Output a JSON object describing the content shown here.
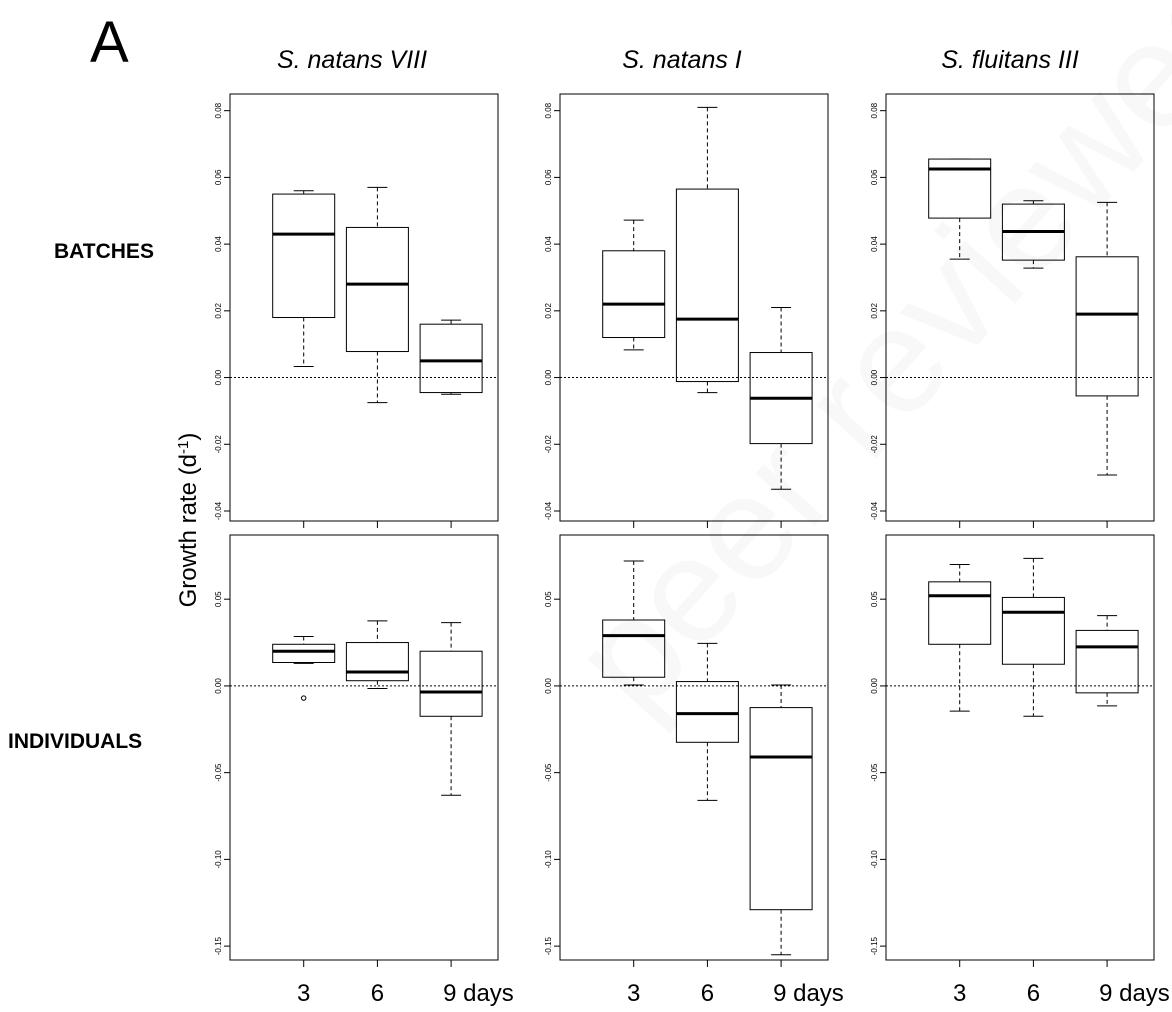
{
  "figure": {
    "panel_letter": "A",
    "ylabel": "Growth rate (d",
    "ylabel_sup": "-1",
    "ylabel_close": ")",
    "watermark": "peer reviewed",
    "columns": [
      "S. natans VIII",
      "S. natans I",
      "S. fluitans III"
    ],
    "rows": [
      "BATCHES",
      "INDIVIDUALS"
    ]
  },
  "chart_data": [
    {
      "type": "boxplot",
      "column": "S. natans VIII",
      "row": "BATCHES",
      "categories": [
        "3",
        "6",
        "9 days"
      ],
      "ylim": [
        -0.043,
        0.085
      ],
      "yticks": [
        "-0.04",
        "-0.02",
        "0.00",
        "0.02",
        "0.04",
        "0.06",
        "0.08"
      ],
      "reference_line": 0,
      "boxes": [
        {
          "min": 0.0033,
          "q1": 0.018,
          "median": 0.043,
          "q3": 0.055,
          "max": 0.056
        },
        {
          "min": -0.0075,
          "q1": 0.0078,
          "median": 0.028,
          "q3": 0.045,
          "max": 0.057
        },
        {
          "min": -0.005,
          "q1": -0.0045,
          "median": 0.005,
          "q3": 0.016,
          "max": 0.0172
        }
      ],
      "outliers": []
    },
    {
      "type": "boxplot",
      "column": "S. natans I",
      "row": "BATCHES",
      "categories": [
        "3",
        "6",
        "9 days"
      ],
      "ylim": [
        -0.043,
        0.085
      ],
      "yticks": [
        "-0.04",
        "-0.02",
        "0.00",
        "0.02",
        "0.04",
        "0.06",
        "0.08"
      ],
      "reference_line": 0,
      "boxes": [
        {
          "min": 0.0083,
          "q1": 0.012,
          "median": 0.022,
          "q3": 0.038,
          "max": 0.0472
        },
        {
          "min": -0.0045,
          "q1": -0.0012,
          "median": 0.0175,
          "q3": 0.0565,
          "max": 0.081
        },
        {
          "min": -0.0335,
          "q1": -0.0198,
          "median": -0.0062,
          "q3": 0.0075,
          "max": 0.021
        }
      ],
      "outliers": []
    },
    {
      "type": "boxplot",
      "column": "S. fluitans III",
      "row": "BATCHES",
      "categories": [
        "3",
        "6",
        "9 days"
      ],
      "ylim": [
        -0.043,
        0.085
      ],
      "yticks": [
        "-0.04",
        "-0.02",
        "0.00",
        "0.02",
        "0.04",
        "0.06",
        "0.08"
      ],
      "reference_line": 0,
      "boxes": [
        {
          "min": 0.0355,
          "q1": 0.0478,
          "median": 0.0625,
          "q3": 0.0655,
          "max": 0.0655
        },
        {
          "min": 0.0328,
          "q1": 0.0352,
          "median": 0.0438,
          "q3": 0.052,
          "max": 0.053
        },
        {
          "min": -0.0292,
          "q1": -0.0055,
          "median": 0.019,
          "q3": 0.0362,
          "max": 0.0525
        }
      ],
      "outliers": []
    },
    {
      "type": "boxplot",
      "column": "S. natans VIII",
      "row": "INDIVIDUALS",
      "categories": [
        "3",
        "6",
        "9 days"
      ],
      "ylim": [
        -0.158,
        0.087
      ],
      "yticks": [
        "-0.15",
        "-0.10",
        "-0.05",
        "0.00",
        "0.05"
      ],
      "reference_line": 0,
      "boxes": [
        {
          "min": 0.013,
          "q1": 0.0135,
          "median": 0.02,
          "q3": 0.024,
          "max": 0.0285
        },
        {
          "min": -0.0015,
          "q1": 0.003,
          "median": 0.008,
          "q3": 0.025,
          "max": 0.0375
        },
        {
          "min": -0.063,
          "q1": -0.0175,
          "median": -0.0035,
          "q3": 0.02,
          "max": 0.0365
        }
      ],
      "outliers": [
        {
          "category": "3",
          "value": -0.007
        }
      ]
    },
    {
      "type": "boxplot",
      "column": "S. natans I",
      "row": "INDIVIDUALS",
      "categories": [
        "3",
        "6",
        "9 days"
      ],
      "ylim": [
        -0.158,
        0.087
      ],
      "yticks": [
        "-0.15",
        "-0.10",
        "-0.05",
        "0.00",
        "0.05"
      ],
      "reference_line": 0,
      "boxes": [
        {
          "min": 0.0005,
          "q1": 0.005,
          "median": 0.029,
          "q3": 0.038,
          "max": 0.072
        },
        {
          "min": -0.066,
          "q1": -0.0325,
          "median": -0.016,
          "q3": 0.0025,
          "max": 0.0245
        },
        {
          "min": -0.155,
          "q1": -0.129,
          "median": -0.041,
          "q3": -0.0125,
          "max": 0.0005
        }
      ],
      "outliers": []
    },
    {
      "type": "boxplot",
      "column": "S. fluitans III",
      "row": "INDIVIDUALS",
      "categories": [
        "3",
        "6",
        "9 days"
      ],
      "ylim": [
        -0.158,
        0.087
      ],
      "yticks": [
        "-0.15",
        "-0.10",
        "-0.05",
        "0.00",
        "0.05"
      ],
      "reference_line": 0,
      "boxes": [
        {
          "min": -0.0145,
          "q1": 0.024,
          "median": 0.052,
          "q3": 0.06,
          "max": 0.07
        },
        {
          "min": -0.0175,
          "q1": 0.0125,
          "median": 0.0425,
          "q3": 0.051,
          "max": 0.0735
        },
        {
          "min": -0.0115,
          "q1": -0.004,
          "median": 0.0225,
          "q3": 0.032,
          "max": 0.0405
        }
      ],
      "outliers": []
    }
  ]
}
